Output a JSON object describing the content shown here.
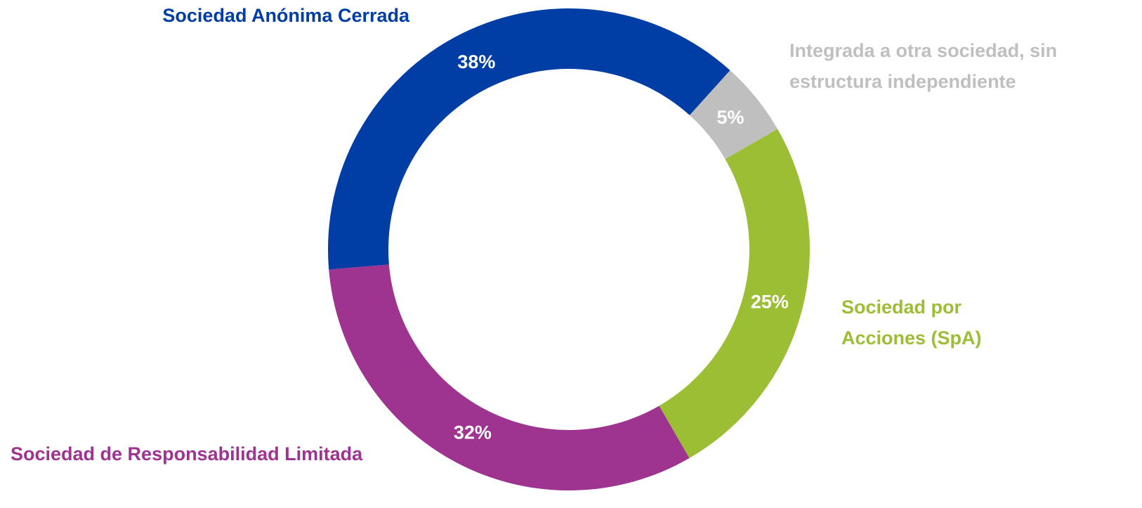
{
  "chart_data": {
    "type": "donut",
    "categories": [
      "Sociedad Anónima Cerrada",
      "Integrada a otra sociedad, sin estructura independiente",
      "Sociedad por Acciones (SpA)",
      "Sociedad de Responsabilidad Limitada"
    ],
    "values": [
      38,
      5,
      25,
      32
    ],
    "value_labels": [
      "38%",
      "5%",
      "25%",
      "32%"
    ],
    "colors": [
      "#003da5",
      "#bfbfbf",
      "#9bbe35",
      "#9e3390"
    ]
  }
}
